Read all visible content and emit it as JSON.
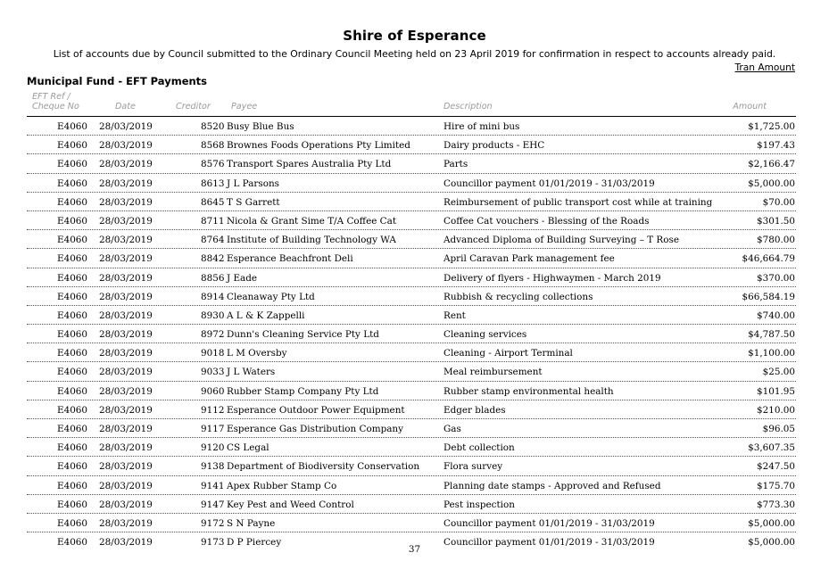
{
  "header": {
    "title": "Shire of Esperance",
    "subtitle": "List of accounts due by Council submitted to the Ordinary Council Meeting held on 23 April 2019 for confirmation in respect to accounts already paid.",
    "tran_amount": "Tran Amount",
    "section": "Municipal Fund - EFT Payments"
  },
  "columns": {
    "eft_ref": "EFT Ref /",
    "cheque_no": "Cheque No",
    "date": "Date",
    "creditor": "Creditor",
    "payee": "Payee",
    "description": "Description",
    "amount": "Amount"
  },
  "rows": [
    {
      "ref": "E4060",
      "date": "28/03/2019",
      "creditor": "8520",
      "payee": "Busy Blue Bus",
      "description": "Hire of mini bus",
      "amount": "$1,725.00"
    },
    {
      "ref": "E4060",
      "date": "28/03/2019",
      "creditor": "8568",
      "payee": "Brownes Foods Operations Pty Limited",
      "description": "Dairy products - EHC",
      "amount": "$197.43"
    },
    {
      "ref": "E4060",
      "date": "28/03/2019",
      "creditor": "8576",
      "payee": "Transport Spares Australia Pty Ltd",
      "description": "Parts",
      "amount": "$2,166.47"
    },
    {
      "ref": "E4060",
      "date": "28/03/2019",
      "creditor": "8613",
      "payee": "J L Parsons",
      "description": "Councillor payment 01/01/2019 - 31/03/2019",
      "amount": "$5,000.00"
    },
    {
      "ref": "E4060",
      "date": "28/03/2019",
      "creditor": "8645",
      "payee": "T S Garrett",
      "description": "Reimbursement of public transport cost while at training",
      "amount": "$70.00"
    },
    {
      "ref": "E4060",
      "date": "28/03/2019",
      "creditor": "8711",
      "payee": "Nicola & Grant Sime T/A Coffee Cat",
      "description": "Coffee Cat vouchers - Blessing of the Roads",
      "amount": "$301.50"
    },
    {
      "ref": "E4060",
      "date": "28/03/2019",
      "creditor": "8764",
      "payee": "Institute of Building Technology WA",
      "description": "Advanced Diploma of Building Surveying – T Rose",
      "amount": "$780.00"
    },
    {
      "ref": "E4060",
      "date": "28/03/2019",
      "creditor": "8842",
      "payee": "Esperance Beachfront Deli",
      "description": "April Caravan Park management fee",
      "amount": "$46,664.79"
    },
    {
      "ref": "E4060",
      "date": "28/03/2019",
      "creditor": "8856",
      "payee": "J Eade",
      "description": "Delivery of flyers - Highwaymen - March 2019",
      "amount": "$370.00"
    },
    {
      "ref": "E4060",
      "date": "28/03/2019",
      "creditor": "8914",
      "payee": "Cleanaway Pty Ltd",
      "description": "Rubbish & recycling collections",
      "amount": "$66,584.19"
    },
    {
      "ref": "E4060",
      "date": "28/03/2019",
      "creditor": "8930",
      "payee": "A L & K Zappelli",
      "description": "Rent",
      "amount": "$740.00"
    },
    {
      "ref": "E4060",
      "date": "28/03/2019",
      "creditor": "8972",
      "payee": "Dunn's Cleaning Service Pty Ltd",
      "description": "Cleaning services",
      "amount": "$4,787.50"
    },
    {
      "ref": "E4060",
      "date": "28/03/2019",
      "creditor": "9018",
      "payee": "L M Oversby",
      "description": "Cleaning - Airport Terminal",
      "amount": "$1,100.00"
    },
    {
      "ref": "E4060",
      "date": "28/03/2019",
      "creditor": "9033",
      "payee": "J L Waters",
      "description": "Meal reimbursement",
      "amount": "$25.00"
    },
    {
      "ref": "E4060",
      "date": "28/03/2019",
      "creditor": "9060",
      "payee": "Rubber Stamp Company Pty Ltd",
      "description": "Rubber stamp environmental health",
      "amount": "$101.95"
    },
    {
      "ref": "E4060",
      "date": "28/03/2019",
      "creditor": "9112",
      "payee": "Esperance Outdoor Power Equipment",
      "description": "Edger blades",
      "amount": "$210.00"
    },
    {
      "ref": "E4060",
      "date": "28/03/2019",
      "creditor": "9117",
      "payee": "Esperance Gas Distribution Company",
      "description": "Gas",
      "amount": "$96.05"
    },
    {
      "ref": "E4060",
      "date": "28/03/2019",
      "creditor": "9120",
      "payee": "CS Legal",
      "description": "Debt collection",
      "amount": "$3,607.35"
    },
    {
      "ref": "E4060",
      "date": "28/03/2019",
      "creditor": "9138",
      "payee": "Department of Biodiversity Conservation",
      "description": "Flora survey",
      "amount": "$247.50"
    },
    {
      "ref": "E4060",
      "date": "28/03/2019",
      "creditor": "9141",
      "payee": "Apex Rubber Stamp Co",
      "description": "Planning date stamps - Approved and Refused",
      "amount": "$175.70"
    },
    {
      "ref": "E4060",
      "date": "28/03/2019",
      "creditor": "9147",
      "payee": "Key Pest and Weed Control",
      "description": "Pest inspection",
      "amount": "$773.30"
    },
    {
      "ref": "E4060",
      "date": "28/03/2019",
      "creditor": "9172",
      "payee": "S N Payne",
      "description": "Councillor payment 01/01/2019 - 31/03/2019",
      "amount": "$5,000.00"
    },
    {
      "ref": "E4060",
      "date": "28/03/2019",
      "creditor": "9173",
      "payee": "D P Piercey",
      "description": "Councillor payment 01/01/2019 - 31/03/2019",
      "amount": "$5,000.00"
    }
  ],
  "footer": {
    "page_number": "37"
  }
}
